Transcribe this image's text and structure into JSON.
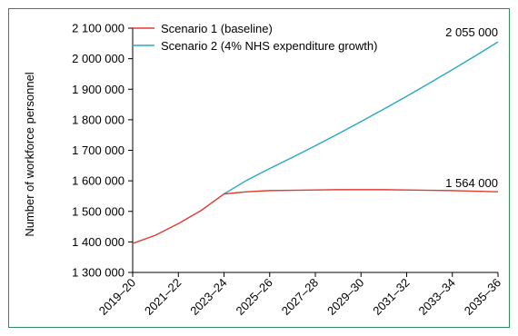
{
  "chart_data": {
    "type": "line",
    "title": "",
    "xlabel": "",
    "ylabel": "Number of workforce personnel",
    "ylim": [
      1300000,
      2100000
    ],
    "y_ticks": [
      1300000,
      1400000,
      1500000,
      1600000,
      1700000,
      1800000,
      1900000,
      2000000,
      2100000
    ],
    "y_tick_labels": [
      "1 300 000",
      "1 400 000",
      "1 500 000",
      "1 600 000",
      "1 700 000",
      "1 800 000",
      "1 900 000",
      "2 000 000",
      "2 100 000"
    ],
    "x_tick_labels": [
      "2019–20",
      "2021–22",
      "2023–24",
      "2025–26",
      "2027–28",
      "2029–30",
      "2031–32",
      "2033–34",
      "2035–36"
    ],
    "x": [
      "2019–20",
      "2020–21",
      "2021–22",
      "2022–23",
      "2023–24",
      "2024–25",
      "2025–26",
      "2026–27",
      "2027–28",
      "2028–29",
      "2029–30",
      "2030–31",
      "2031–32",
      "2032–33",
      "2033–34",
      "2034–35",
      "2035–36"
    ],
    "series": [
      {
        "name": "Scenario 1 (baseline)",
        "color": "#e03c31",
        "values": [
          1395000,
          1422000,
          1460000,
          1503000,
          1557000,
          1564000,
          1568000,
          1569000,
          1570000,
          1571000,
          1571000,
          1571000,
          1570000,
          1569000,
          1568000,
          1566000,
          1564000
        ]
      },
      {
        "name": "Scenario 2 (4% NHS expenditure growth)",
        "color": "#2aa8c4",
        "values": [
          null,
          null,
          null,
          null,
          1557000,
          1602000,
          1640000,
          1677000,
          1715000,
          1754000,
          1794000,
          1835000,
          1877000,
          1920000,
          1964000,
          2009000,
          2055000
        ]
      }
    ],
    "annotations": [
      "2 055 000",
      "1 564 000"
    ],
    "grid": false,
    "legend": "top-left"
  }
}
